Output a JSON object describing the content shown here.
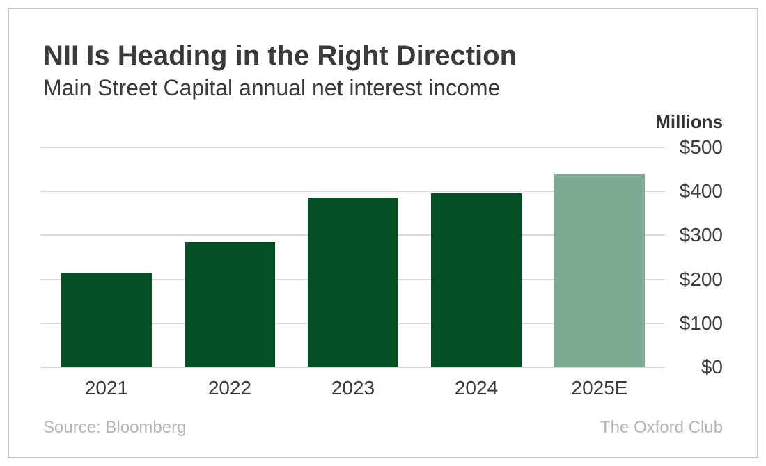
{
  "header": {
    "title": "NII Is Heading in the Right Direction",
    "subtitle": "Main Street Capital annual net interest income"
  },
  "chart_data": {
    "type": "bar",
    "title": "NII Is Heading in the Right Direction",
    "subtitle": "Main Street Capital annual net interest income",
    "unit_label": "Millions",
    "categories": [
      "2021",
      "2022",
      "2023",
      "2024",
      "2025E"
    ],
    "values": [
      215,
      285,
      386,
      396,
      440
    ],
    "bar_colors": [
      "#064e23",
      "#064e23",
      "#064e23",
      "#064e23",
      "#7ea992"
    ],
    "ylabel": "Millions",
    "xlabel": "",
    "ylim": [
      0,
      500
    ],
    "yticks": [
      0,
      100,
      200,
      300,
      400,
      500
    ],
    "ytick_labels": [
      "$0",
      "$100",
      "$200",
      "$300",
      "$400",
      "$500"
    ],
    "grid": "horizontal",
    "axis_label_side": "right",
    "legend": "none"
  },
  "footer": {
    "source": "Source: Bloomberg",
    "attribution": "The Oxford Club"
  },
  "colors": {
    "bar_dark_green": "#064e23",
    "bar_light_green": "#7ea992",
    "text_dark": "#3a3a3a",
    "text_muted": "#b5b5b5",
    "gridline": "#d9d9d9",
    "card_border": "#c8c8c8",
    "background": "#ffffff"
  }
}
